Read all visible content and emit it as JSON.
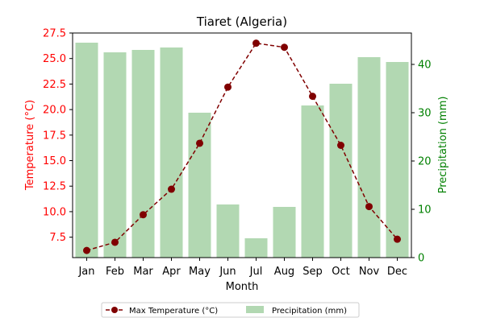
{
  "colors": {
    "temp_line": "#800000",
    "temp_axis": "#ff0000",
    "precip_bar": "#b2d8b2",
    "precip_axis": "#008000"
  },
  "chart_data": {
    "type": "bar",
    "title": "Tiaret (Algeria)",
    "xlabel": "Month",
    "categories": [
      "Jan",
      "Feb",
      "Mar",
      "Apr",
      "May",
      "Jun",
      "Jul",
      "Aug",
      "Sep",
      "Oct",
      "Nov",
      "Dec"
    ],
    "y_left": {
      "label": "Temperature (°C)",
      "range": [
        5.5,
        27.5
      ],
      "ticks": [
        "7.5",
        "10.0",
        "12.5",
        "15.0",
        "17.5",
        "20.0",
        "22.5",
        "25.0",
        "27.5"
      ]
    },
    "y_right": {
      "label": "Precipitation (mm)",
      "range": [
        0,
        46.5
      ],
      "ticks": [
        "0",
        "10",
        "20",
        "30",
        "40"
      ]
    },
    "series": [
      {
        "name": "Max Temperature (°C)",
        "type": "line",
        "axis": "left",
        "style": "dashed",
        "marker": "circle",
        "values": [
          6.2,
          7.0,
          9.7,
          12.2,
          16.7,
          22.2,
          26.5,
          26.1,
          21.3,
          16.5,
          10.5,
          7.3
        ]
      },
      {
        "name": "Precipitation (mm)",
        "type": "bar",
        "axis": "right",
        "values": [
          44.5,
          42.5,
          43.0,
          43.5,
          30.0,
          11.0,
          4.0,
          10.5,
          31.5,
          36.0,
          41.5,
          40.5
        ]
      }
    ],
    "legend": {
      "placement": "bottom-center",
      "items": [
        "Max Temperature (°C)",
        "Precipitation (mm)"
      ]
    },
    "grid": false
  }
}
